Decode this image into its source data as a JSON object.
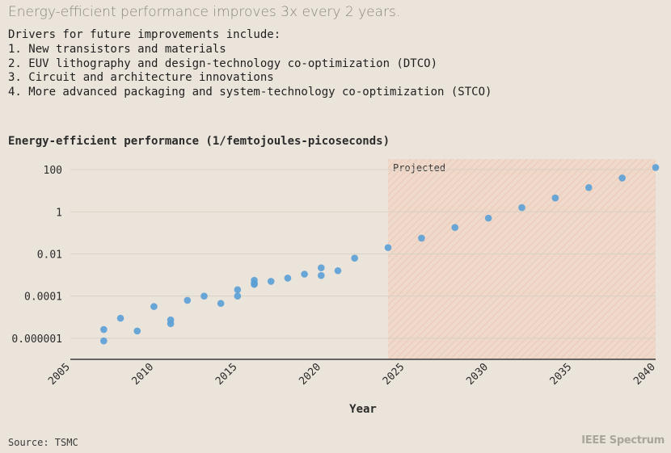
{
  "headline": "Energy-efficient performance improves 3x every 2 years.",
  "drivers": {
    "intro": "Drivers for future improvements include:",
    "items": [
      "1. New transistors and materials",
      "2. EUV lithography and design-technology co-optimization (DTCO)",
      "3. Circuit and architecture innovations",
      "4. More advanced packaging and system-technology co-optimization (STCO)"
    ]
  },
  "source": "Source: TSMC",
  "brand": "IEEE Spectrum",
  "chart_data": {
    "type": "scatter",
    "title": "Energy-efficient performance (1/femtojoules-picoseconds)",
    "xlabel": "Year",
    "ylabel": "",
    "xlim": [
      2005,
      2040
    ],
    "ylim_log10": [
      -7,
      2.5
    ],
    "yscale": "log",
    "x_ticks": [
      2005,
      2010,
      2015,
      2020,
      2025,
      2030,
      2035,
      2040
    ],
    "x_tick_labels": [
      "2005",
      "2010",
      "2015",
      "2020",
      "2025",
      "2030",
      "2035",
      "2040"
    ],
    "y_ticks": [
      1e-06,
      0.0001,
      0.01,
      1,
      100
    ],
    "y_tick_labels": [
      "0.000001",
      "0.0001",
      "0.01",
      "1",
      "100"
    ],
    "grid": true,
    "projected_region": {
      "label": "Projected",
      "x_start": 2024,
      "x_end": 2040
    },
    "color": "#5a9fd6",
    "points": [
      {
        "x": 2007,
        "y": 2.6e-06
      },
      {
        "x": 2007,
        "y": 7.5e-07
      },
      {
        "x": 2008,
        "y": 8.9e-06
      },
      {
        "x": 2009,
        "y": 2.2e-06
      },
      {
        "x": 2010,
        "y": 3.2e-05
      },
      {
        "x": 2011,
        "y": 7.4e-06
      },
      {
        "x": 2011,
        "y": 4.9e-06
      },
      {
        "x": 2012,
        "y": 6.3e-05
      },
      {
        "x": 2013,
        "y": 0.0001
      },
      {
        "x": 2014,
        "y": 4.5e-05
      },
      {
        "x": 2015,
        "y": 0.0002
      },
      {
        "x": 2015,
        "y": 0.0001
      },
      {
        "x": 2016,
        "y": 0.00056
      },
      {
        "x": 2016,
        "y": 0.0004
      },
      {
        "x": 2016,
        "y": 0.00036
      },
      {
        "x": 2017,
        "y": 0.0005
      },
      {
        "x": 2018,
        "y": 0.00071
      },
      {
        "x": 2019,
        "y": 0.0011
      },
      {
        "x": 2020,
        "y": 0.0022
      },
      {
        "x": 2020,
        "y": 0.00095
      },
      {
        "x": 2021,
        "y": 0.0016
      },
      {
        "x": 2022,
        "y": 0.0063
      },
      {
        "x": 2024,
        "y": 0.02
      },
      {
        "x": 2026,
        "y": 0.056
      },
      {
        "x": 2028,
        "y": 0.18
      },
      {
        "x": 2030,
        "y": 0.5
      },
      {
        "x": 2032,
        "y": 1.58
      },
      {
        "x": 2034,
        "y": 4.5
      },
      {
        "x": 2036,
        "y": 14.1
      },
      {
        "x": 2038,
        "y": 40.0
      },
      {
        "x": 2040,
        "y": 126
      }
    ]
  }
}
